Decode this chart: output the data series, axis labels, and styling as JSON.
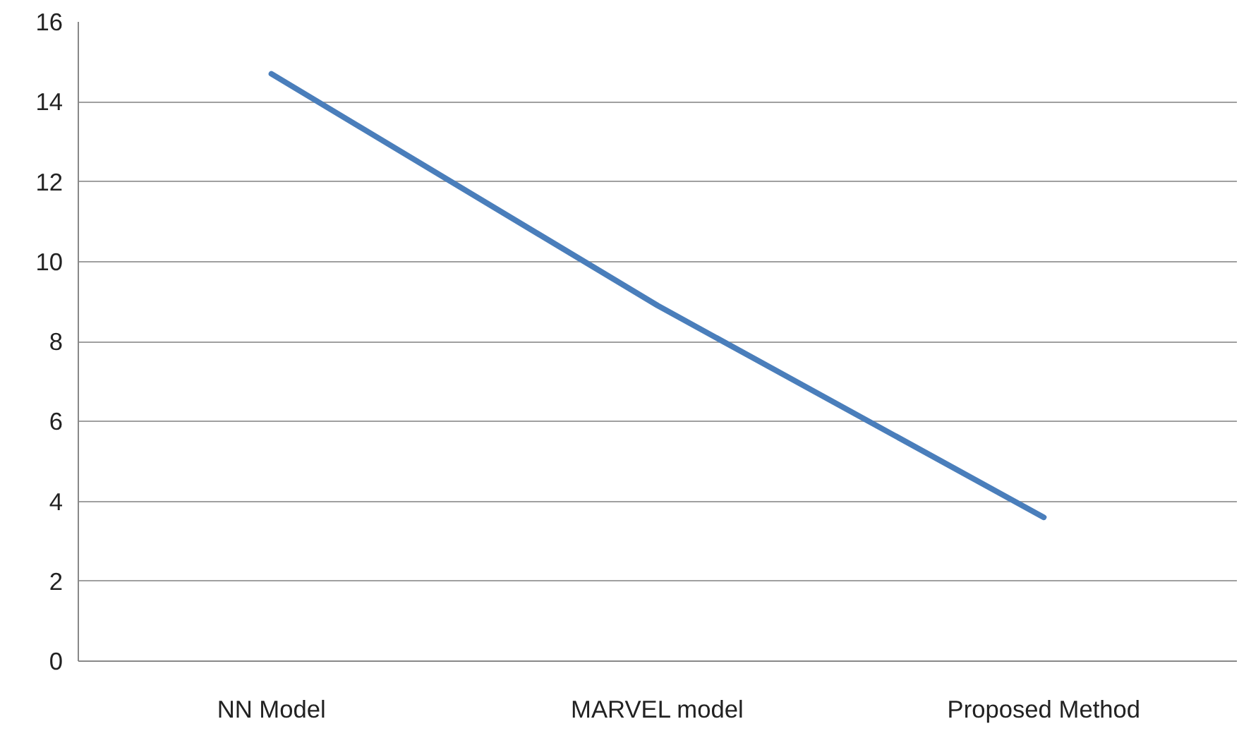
{
  "chart_data": {
    "type": "line",
    "categories": [
      "NN Model",
      "MARVEL model",
      "Proposed Method"
    ],
    "series": [
      {
        "color": "#4a7ebb",
        "values": [
          14.7,
          8.9,
          3.6
        ]
      }
    ],
    "ylim": [
      0,
      16
    ],
    "yticks": [
      0,
      2,
      4,
      6,
      8,
      10,
      12,
      14,
      16
    ],
    "grid": "y",
    "marker": "none"
  }
}
